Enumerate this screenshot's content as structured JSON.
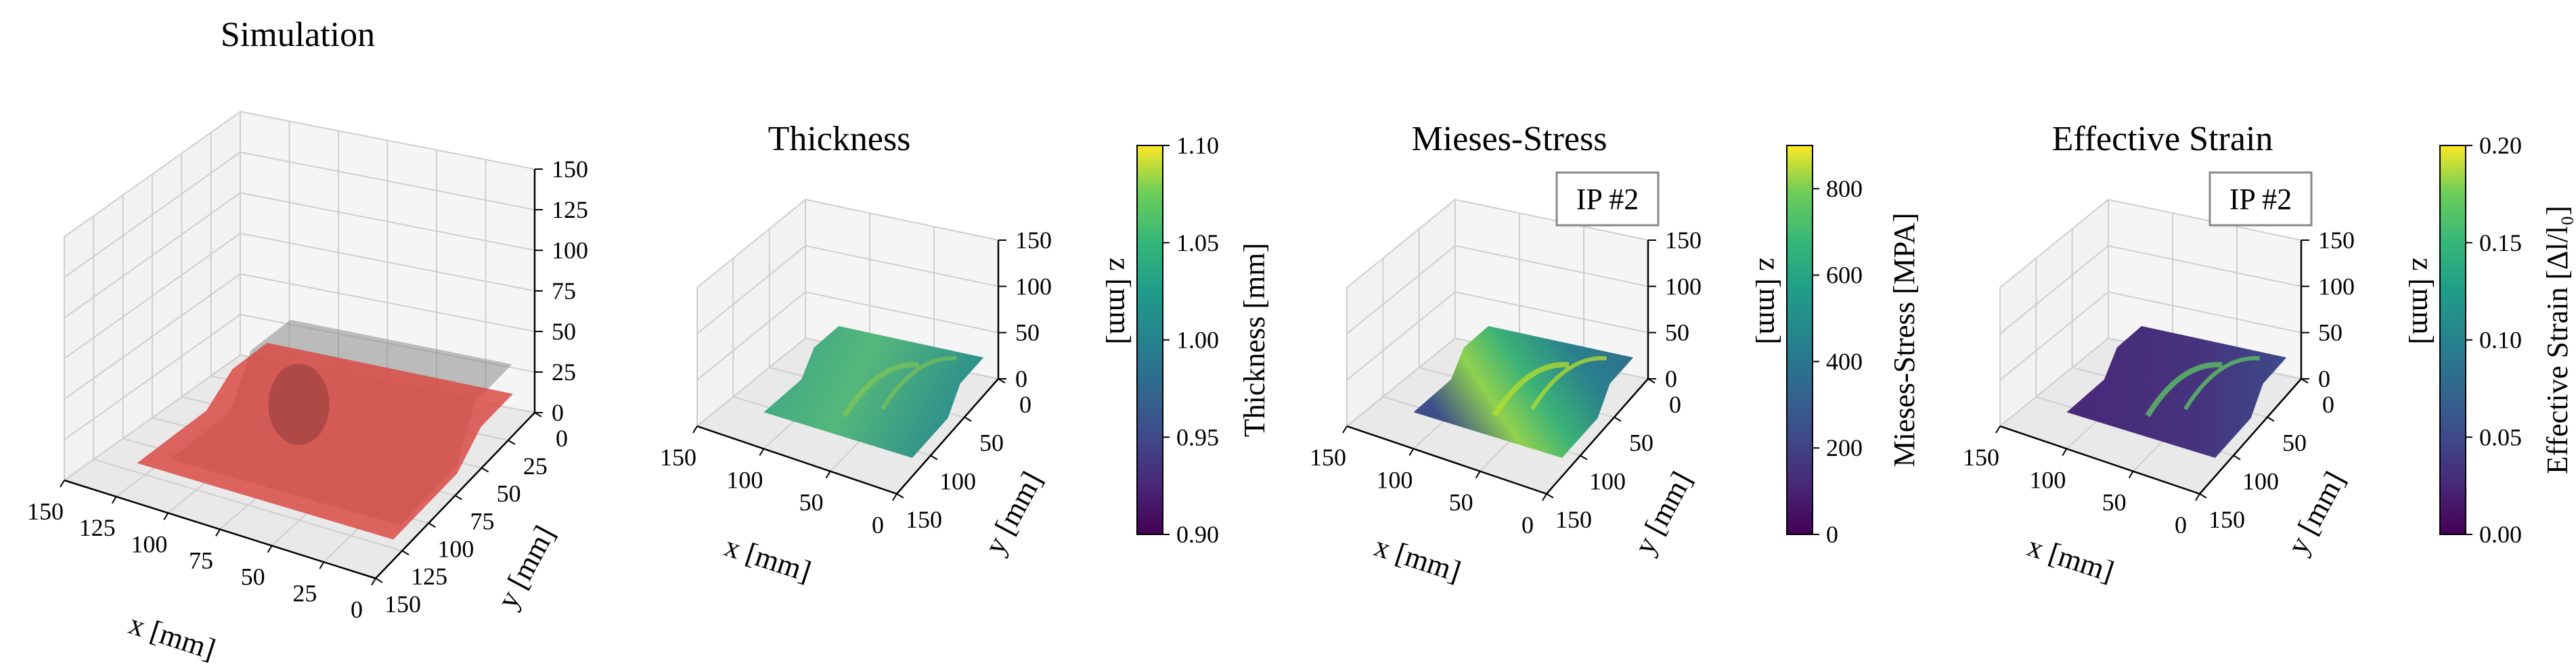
{
  "chart_data": [
    {
      "type": "surface3d",
      "title": "Simulation",
      "xlabel": "x [mm]",
      "ylabel": "y [mm]",
      "zlabel": "",
      "xticks": [
        "150",
        "125",
        "100",
        "75",
        "50",
        "25",
        "0"
      ],
      "yticks": [
        "0",
        "25",
        "50",
        "75",
        "100",
        "125",
        "150"
      ],
      "zticks": [
        "0",
        "25",
        "50",
        "75",
        "100",
        "125",
        "150"
      ],
      "xlim": [
        0,
        150
      ],
      "ylim": [
        0,
        150
      ],
      "zlim": [
        0,
        150
      ],
      "surfaces": [
        "sheet (red)",
        "die (grey)"
      ],
      "colors": {
        "sheet": "#d9463f",
        "die": "#8a8a8a"
      }
    },
    {
      "type": "surface3d",
      "title": "Thickness",
      "xlabel": "x [mm]",
      "ylabel": "y [mm]",
      "zlabel": "z [mm]",
      "xticks": [
        "150",
        "100",
        "50",
        "0"
      ],
      "yticks": [
        "0",
        "50",
        "100",
        "150"
      ],
      "zticks": [
        "0",
        "50",
        "100",
        "150"
      ],
      "xlim": [
        0,
        150
      ],
      "ylim": [
        0,
        150
      ],
      "zlim": [
        0,
        150
      ],
      "colorbar": {
        "label": "Thickness [mm]",
        "ticks": [
          "0.90",
          "0.95",
          "1.00",
          "1.05",
          "1.10"
        ],
        "range": [
          0.9,
          1.1
        ],
        "cmap": "viridis"
      },
      "badge": ""
    },
    {
      "type": "surface3d",
      "title": "Mieses-Stress",
      "xlabel": "x [mm]",
      "ylabel": "y [mm]",
      "zlabel": "z [mm]",
      "xticks": [
        "150",
        "100",
        "50",
        "0"
      ],
      "yticks": [
        "0",
        "50",
        "100",
        "150"
      ],
      "zticks": [
        "0",
        "50",
        "100",
        "150"
      ],
      "xlim": [
        0,
        150
      ],
      "ylim": [
        0,
        150
      ],
      "zlim": [
        0,
        150
      ],
      "colorbar": {
        "label": "Mieses-Stress [MPA]",
        "ticks": [
          "0",
          "200",
          "400",
          "600",
          "800"
        ],
        "range": [
          0,
          900
        ],
        "cmap": "viridis"
      },
      "badge": "IP #2"
    },
    {
      "type": "surface3d",
      "title": "Effective Strain",
      "xlabel": "x [mm]",
      "ylabel": "y [mm]",
      "zlabel": "z [mm]",
      "xticks": [
        "150",
        "100",
        "50",
        "0"
      ],
      "yticks": [
        "0",
        "50",
        "100",
        "150"
      ],
      "zticks": [
        "0",
        "50",
        "100",
        "150"
      ],
      "xlim": [
        0,
        150
      ],
      "ylim": [
        0,
        150
      ],
      "zlim": [
        0,
        150
      ],
      "colorbar": {
        "label": "Effective Strain [Δl/l₀]",
        "ticks": [
          "0.00",
          "0.05",
          "0.10",
          "0.15",
          "0.20"
        ],
        "range": [
          0,
          0.2
        ],
        "cmap": "viridis"
      },
      "badge": "IP #2"
    }
  ]
}
